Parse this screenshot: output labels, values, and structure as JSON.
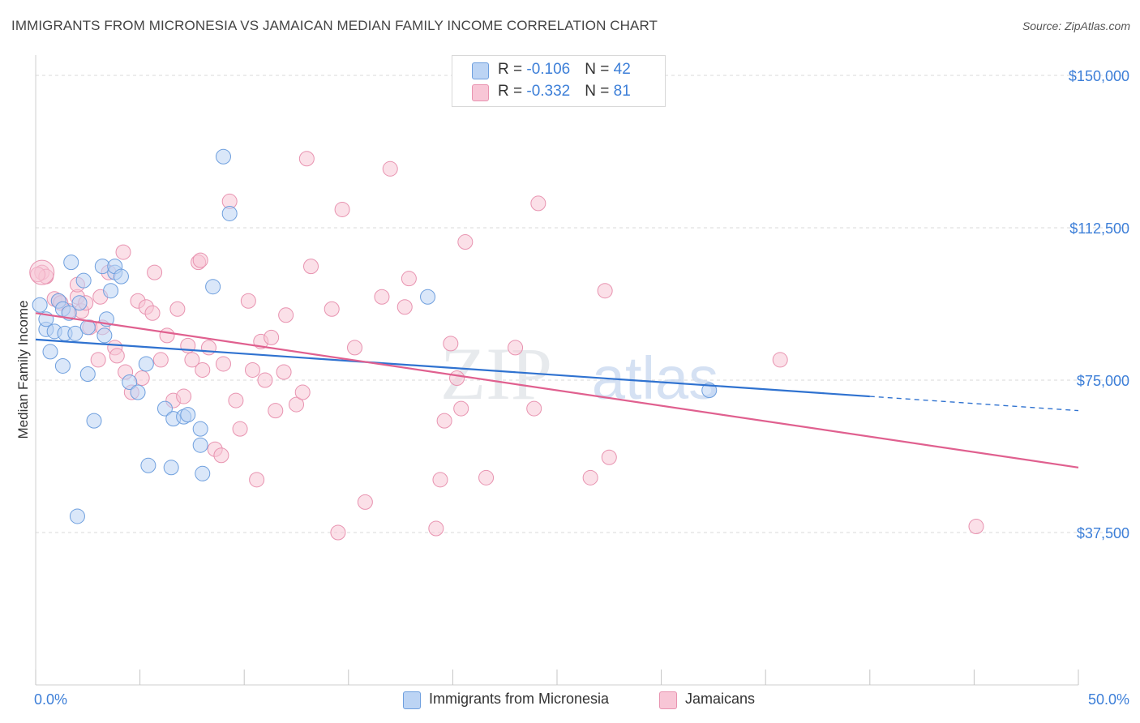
{
  "title": "IMMIGRANTS FROM MICRONESIA VS JAMAICAN MEDIAN FAMILY INCOME CORRELATION CHART",
  "source": "Source: ZipAtlas.com",
  "watermark": {
    "zip": "ZIP",
    "atlas": "atlas"
  },
  "legend": {
    "rows": [
      {
        "r_label": "R = ",
        "r_value": "-0.106",
        "n_label": "N = ",
        "n_value": "42"
      },
      {
        "r_label": "R = ",
        "r_value": "-0.332",
        "n_label": "N = ",
        "n_value": "81"
      }
    ]
  },
  "bottom_legend": [
    "Immigrants from Micronesia",
    "Jamaicans"
  ],
  "colors": {
    "blue_fill": "#bcd4f4",
    "blue_stroke": "#6e9fde",
    "blue_line": "#2f72d0",
    "pink_fill": "#f8c6d6",
    "pink_stroke": "#e893b0",
    "pink_line": "#e0608f",
    "tick_text": "#3d7fd8",
    "grid": "#d9d9d9"
  },
  "chart_data": {
    "type": "scatter",
    "title": "IMMIGRANTS FROM MICRONESIA VS JAMAICAN MEDIAN FAMILY INCOME CORRELATION CHART",
    "xlabel": "",
    "ylabel": "Median Family Income",
    "xlim": [
      0,
      50
    ],
    "ylim": [
      0,
      152000
    ],
    "x_tick_labels": [
      "0.0%",
      "50.0%"
    ],
    "y_ticks": [
      37500,
      75000,
      112500,
      150000
    ],
    "y_tick_labels": [
      "$37,500",
      "$75,000",
      "$112,500",
      "$150,000"
    ],
    "grid": true,
    "legend_position": "top-center",
    "series": [
      {
        "name": "Immigrants from Micronesia",
        "stats": {
          "R": -0.106,
          "N": 42
        },
        "trend": {
          "x0": 0,
          "y0": 85000,
          "x1": 40,
          "y1": 71000,
          "dashed_to_x": 50,
          "dashed_to_y": 67500
        },
        "points": [
          [
            0.2,
            93500
          ],
          [
            0.5,
            87500
          ],
          [
            0.5,
            90000
          ],
          [
            0.7,
            82000
          ],
          [
            0.9,
            87000
          ],
          [
            1.1,
            94500
          ],
          [
            1.3,
            92500
          ],
          [
            1.3,
            78500
          ],
          [
            1.4,
            86500
          ],
          [
            1.6,
            91500
          ],
          [
            1.7,
            104000
          ],
          [
            1.9,
            86500
          ],
          [
            2.1,
            94000
          ],
          [
            2.3,
            99500
          ],
          [
            2.5,
            88000
          ],
          [
            2.5,
            76500
          ],
          [
            2.8,
            65000
          ],
          [
            3.2,
            103000
          ],
          [
            3.3,
            86000
          ],
          [
            3.4,
            90000
          ],
          [
            3.6,
            97000
          ],
          [
            3.8,
            101500
          ],
          [
            3.8,
            103000
          ],
          [
            4.1,
            100500
          ],
          [
            4.5,
            74500
          ],
          [
            4.9,
            72000
          ],
          [
            5.3,
            79000
          ],
          [
            5.4,
            54000
          ],
          [
            6.2,
            68000
          ],
          [
            6.5,
            53500
          ],
          [
            6.6,
            65500
          ],
          [
            7.1,
            66000
          ],
          [
            7.3,
            66500
          ],
          [
            7.9,
            63000
          ],
          [
            7.9,
            59000
          ],
          [
            8.0,
            52000
          ],
          [
            8.5,
            98000
          ],
          [
            9.0,
            130000
          ],
          [
            9.3,
            116000
          ],
          [
            18.8,
            95500
          ],
          [
            32.3,
            72500
          ],
          [
            2.0,
            41500
          ]
        ]
      },
      {
        "name": "Jamaicans",
        "stats": {
          "R": -0.332,
          "N": 81
        },
        "trend": {
          "x0": 0,
          "y0": 91500,
          "x1": 50,
          "y1": 53500
        },
        "points": [
          [
            0.3,
            101500
          ],
          [
            0.5,
            100500
          ],
          [
            0.9,
            95000
          ],
          [
            1.1,
            94500
          ],
          [
            1.2,
            94000
          ],
          [
            1.6,
            92000
          ],
          [
            2.0,
            95500
          ],
          [
            2.0,
            98500
          ],
          [
            2.2,
            92000
          ],
          [
            2.4,
            94000
          ],
          [
            2.6,
            88000
          ],
          [
            3.0,
            80000
          ],
          [
            3.1,
            95500
          ],
          [
            3.2,
            88000
          ],
          [
            3.5,
            101500
          ],
          [
            3.8,
            83000
          ],
          [
            3.9,
            81000
          ],
          [
            4.2,
            106500
          ],
          [
            4.3,
            77000
          ],
          [
            4.6,
            72000
          ],
          [
            4.9,
            94500
          ],
          [
            5.1,
            75500
          ],
          [
            5.3,
            93000
          ],
          [
            5.6,
            91500
          ],
          [
            5.7,
            101500
          ],
          [
            6.0,
            80000
          ],
          [
            6.3,
            86000
          ],
          [
            6.6,
            70000
          ],
          [
            6.8,
            92500
          ],
          [
            7.1,
            71000
          ],
          [
            7.3,
            83500
          ],
          [
            7.5,
            80000
          ],
          [
            7.8,
            104000
          ],
          [
            7.9,
            104500
          ],
          [
            8.0,
            77500
          ],
          [
            8.3,
            83000
          ],
          [
            8.6,
            58000
          ],
          [
            8.9,
            56500
          ],
          [
            9.0,
            79000
          ],
          [
            9.3,
            119000
          ],
          [
            9.6,
            70000
          ],
          [
            9.8,
            63000
          ],
          [
            10.2,
            94500
          ],
          [
            10.4,
            77500
          ],
          [
            10.6,
            50500
          ],
          [
            10.8,
            84500
          ],
          [
            11.0,
            75000
          ],
          [
            11.3,
            85500
          ],
          [
            11.5,
            67500
          ],
          [
            11.9,
            77000
          ],
          [
            12.0,
            91000
          ],
          [
            12.5,
            69000
          ],
          [
            12.8,
            72000
          ],
          [
            13.0,
            129500
          ],
          [
            13.2,
            103000
          ],
          [
            14.2,
            92500
          ],
          [
            14.5,
            37500
          ],
          [
            14.7,
            117000
          ],
          [
            15.3,
            83000
          ],
          [
            15.8,
            45000
          ],
          [
            16.6,
            95500
          ],
          [
            17.0,
            127000
          ],
          [
            17.7,
            93000
          ],
          [
            17.9,
            100000
          ],
          [
            19.2,
            38500
          ],
          [
            19.4,
            50500
          ],
          [
            19.6,
            65000
          ],
          [
            19.9,
            84000
          ],
          [
            20.2,
            75500
          ],
          [
            20.4,
            68000
          ],
          [
            20.6,
            109000
          ],
          [
            21.6,
            51000
          ],
          [
            23.0,
            83000
          ],
          [
            23.9,
            68000
          ],
          [
            24.1,
            118500
          ],
          [
            26.6,
            51000
          ],
          [
            27.3,
            97000
          ],
          [
            27.5,
            56000
          ],
          [
            35.7,
            80000
          ],
          [
            45.1,
            39000
          ],
          [
            0.1,
            101000
          ]
        ]
      }
    ]
  }
}
